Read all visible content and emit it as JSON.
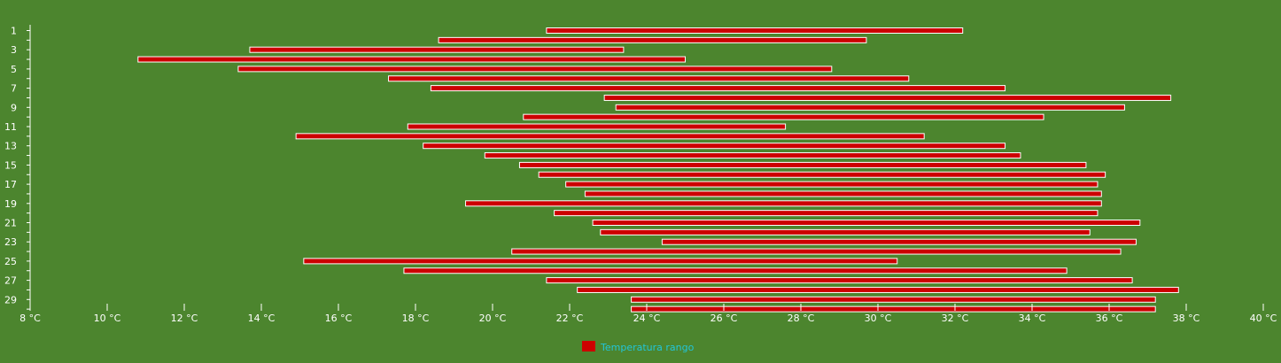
{
  "chart_data": {
    "type": "bar",
    "orientation": "horizontal-range",
    "xlim": [
      8,
      40
    ],
    "x_ticks": [
      8,
      10,
      12,
      14,
      16,
      18,
      20,
      22,
      24,
      26,
      28,
      30,
      32,
      34,
      36,
      38,
      40
    ],
    "x_unit_suffix": " °C",
    "y_tick_labels": [
      "1",
      "3",
      "5",
      "7",
      "9",
      "11",
      "13",
      "15",
      "17",
      "19",
      "21",
      "23",
      "25",
      "27",
      "29"
    ],
    "categories": [
      1,
      2,
      3,
      4,
      5,
      6,
      7,
      8,
      9,
      10,
      11,
      12,
      13,
      14,
      15,
      16,
      17,
      18,
      19,
      20,
      21,
      22,
      23,
      24,
      25,
      26,
      27,
      28,
      29,
      30
    ],
    "series": [
      {
        "name": "Temperatura rango",
        "color": "#cc0000",
        "ranges": [
          [
            21.4,
            32.2
          ],
          [
            18.6,
            29.7
          ],
          [
            13.7,
            23.4
          ],
          [
            10.8,
            25.0
          ],
          [
            13.4,
            28.8
          ],
          [
            17.3,
            30.8
          ],
          [
            18.4,
            33.3
          ],
          [
            22.9,
            37.6
          ],
          [
            23.2,
            36.4
          ],
          [
            20.8,
            34.3
          ],
          [
            17.8,
            27.6
          ],
          [
            14.9,
            31.2
          ],
          [
            18.2,
            33.3
          ],
          [
            19.8,
            33.7
          ],
          [
            20.7,
            35.4
          ],
          [
            21.2,
            35.9
          ],
          [
            21.9,
            35.7
          ],
          [
            22.4,
            35.8
          ],
          [
            19.3,
            35.8
          ],
          [
            21.6,
            35.7
          ],
          [
            22.6,
            36.8
          ],
          [
            22.8,
            35.5
          ],
          [
            24.4,
            36.7
          ],
          [
            20.5,
            36.3
          ],
          [
            15.1,
            30.5
          ],
          [
            17.7,
            34.9
          ],
          [
            21.4,
            36.6
          ],
          [
            22.2,
            37.8
          ],
          [
            23.6,
            37.2
          ],
          [
            23.6,
            37.2
          ]
        ]
      }
    ],
    "legend": {
      "label": "Temperatura rango",
      "color": "#cc0000",
      "position": "bottom-center"
    },
    "grid": false,
    "colors": {
      "background": "#4c852e",
      "axis": "#ffffff",
      "bar_stroke": "#ffffff",
      "legend_text": "#22c5d8"
    }
  }
}
